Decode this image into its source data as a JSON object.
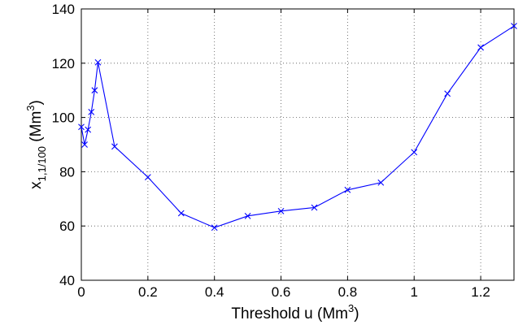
{
  "chart_data": {
    "type": "line",
    "title": "",
    "xlabel_main": "Threshold u (Mm",
    "xlabel_sup": "3",
    "xlabel_end": ")",
    "ylabel_main": "x",
    "ylabel_sub": "1,1/100",
    "ylabel_mid": " (Mm",
    "ylabel_sup": "3",
    "ylabel_end": ")",
    "xlim": [
      0,
      1.3
    ],
    "ylim": [
      40,
      140
    ],
    "xticks": [
      0,
      0.2,
      0.4,
      0.6,
      0.8,
      1,
      1.2
    ],
    "xtick_labels": [
      "0",
      "0.2",
      "0.4",
      "0.6",
      "0.8",
      "1",
      "1.2"
    ],
    "yticks": [
      40,
      60,
      80,
      100,
      120,
      140
    ],
    "ytick_labels": [
      "40",
      "60",
      "80",
      "100",
      "120",
      "140"
    ],
    "grid": true,
    "series": [
      {
        "color": "#0000ff",
        "marker": "x",
        "x": [
          0,
          0.01,
          0.02,
          0.03,
          0.04,
          0.05,
          0.1,
          0.2,
          0.3,
          0.4,
          0.5,
          0.6,
          0.7,
          0.8,
          0.9,
          1.0,
          1.1,
          1.2,
          1.3
        ],
        "y": [
          96.5,
          90,
          95.5,
          102,
          110,
          120.3,
          89.3,
          78,
          64.7,
          59.4,
          63.7,
          65.5,
          66.8,
          73.3,
          76,
          87.2,
          108.8,
          125.8,
          133.7
        ]
      }
    ]
  }
}
